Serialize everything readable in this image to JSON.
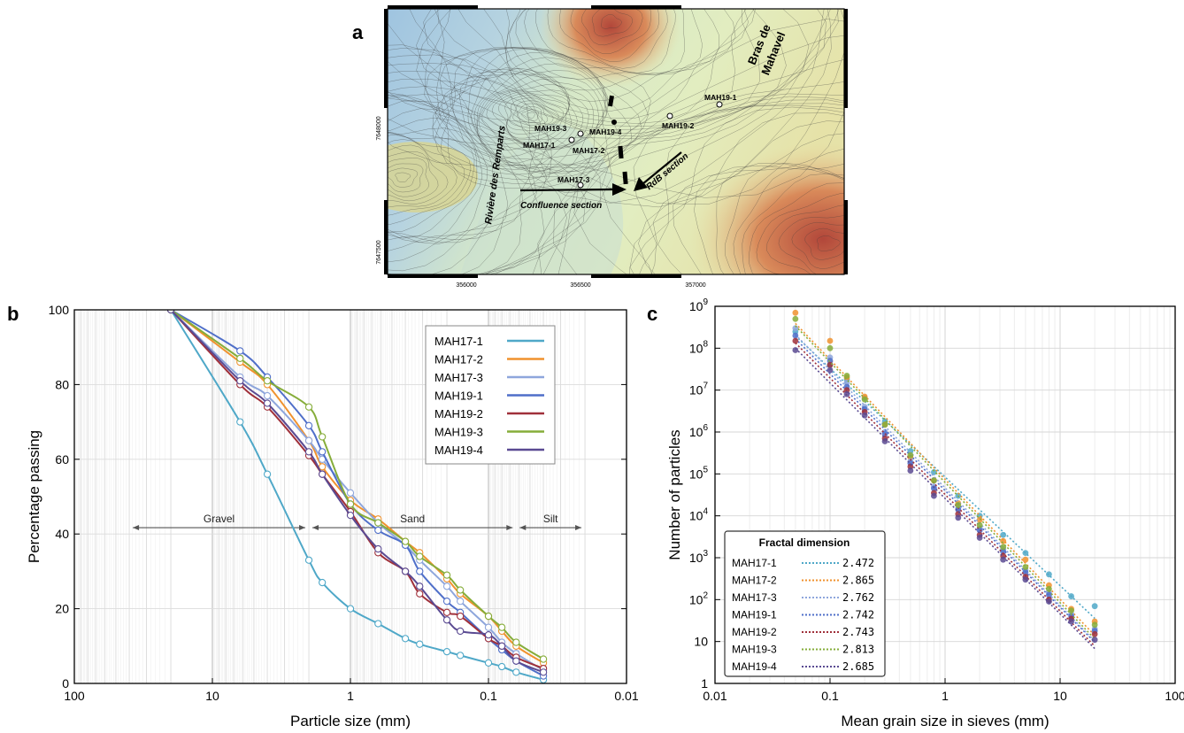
{
  "colors": {
    "map_water": "#9fc4e0",
    "map_low": "#d4e7c5",
    "map_mid": "#e7e0a6",
    "map_high": "#d98a5a",
    "map_peak": "#b2473a",
    "MAH17-1": "#4fa8c8",
    "MAH17-2": "#f0922e",
    "MAH17-3": "#8ea6dc",
    "MAH19-1": "#4f6fc9",
    "MAH19-2": "#a0303a",
    "MAH19-3": "#86ad3a",
    "MAH19-4": "#5a4a92"
  },
  "panels": {
    "a": "a",
    "b": "b",
    "c": "c"
  },
  "map": {
    "x_ticks": [
      "356000",
      "356500",
      "357000"
    ],
    "y_ticks": [
      "7648000",
      "7647500"
    ],
    "labels": [
      {
        "id": "mah19-1",
        "text": "MAH19-1"
      },
      {
        "id": "mah19-2",
        "text": "MAH19-2"
      },
      {
        "id": "mah19-3",
        "text": "MAH19-3"
      },
      {
        "id": "mah19-4",
        "text": "MAH19-4"
      },
      {
        "id": "mah17-1",
        "text": "MAH17-1"
      },
      {
        "id": "mah17-2",
        "text": "MAH17-2"
      },
      {
        "id": "mah17-3",
        "text": "MAH17-3"
      }
    ],
    "river_rem": "Rivière des Remparts",
    "bras_line1": "Bras de",
    "bras_line2": "Mahavel",
    "confluence": "Confluence section",
    "rdb": "RdB section"
  },
  "chart_data": [
    {
      "panel": "b",
      "type": "line",
      "xscale": "log",
      "xlim": [
        100,
        0.01
      ],
      "ylim": [
        0,
        100
      ],
      "xlabel": "Particle size (mm)",
      "ylabel": "Percentage passing",
      "x_ticks": [
        100,
        10,
        1,
        0.1,
        0.01
      ],
      "x_tick_labels": [
        "100",
        "10",
        "1",
        "0.1",
        "0.01"
      ],
      "y_ticks": [
        0,
        20,
        40,
        60,
        80,
        100
      ],
      "y_tick_labels": [
        "0",
        "20",
        "40",
        "60",
        "80",
        "100"
      ],
      "grid": true,
      "legend": "top-right",
      "x": [
        20,
        6.3,
        4,
        2,
        1.6,
        1,
        0.63,
        0.4,
        0.315,
        0.2,
        0.16,
        0.1,
        0.08,
        0.063,
        0.04
      ],
      "series": [
        {
          "name": "MAH17-1",
          "values": [
            100,
            70,
            56,
            33,
            27,
            20,
            16,
            12,
            10.5,
            8.5,
            7.5,
            5.5,
            4.5,
            3,
            1
          ]
        },
        {
          "name": "MAH17-2",
          "values": [
            100,
            86,
            80,
            65,
            58,
            49,
            44,
            38,
            35,
            28,
            24,
            18,
            14,
            10,
            5.5
          ]
        },
        {
          "name": "MAH17-3",
          "values": [
            100,
            82,
            77,
            65,
            60,
            51,
            43,
            37,
            33,
            26,
            22,
            15,
            11,
            8,
            3.5
          ]
        },
        {
          "name": "MAH19-1",
          "values": [
            100,
            89,
            82,
            69,
            62,
            48,
            41,
            37,
            30,
            22,
            19,
            12,
            9,
            6,
            2
          ]
        },
        {
          "name": "MAH19-2",
          "values": [
            100,
            80,
            74,
            61,
            56,
            46,
            35,
            30,
            24,
            19,
            18,
            12,
            10,
            7,
            4
          ]
        },
        {
          "name": "MAH19-3",
          "values": [
            100,
            87,
            81,
            74,
            66,
            48,
            43,
            38,
            34,
            29,
            25,
            18,
            15,
            11,
            6.5
          ]
        },
        {
          "name": "MAH19-4",
          "values": [
            100,
            81,
            75,
            62,
            56,
            45,
            36,
            30,
            26,
            17,
            14,
            13,
            10,
            6,
            3
          ]
        }
      ],
      "regions": [
        {
          "name": "Gravel",
          "from": 40,
          "to": 2
        },
        {
          "name": "Sand",
          "from": 2,
          "to": 0.063
        },
        {
          "name": "Silt",
          "from": 0.063,
          "to": 0.02
        }
      ]
    },
    {
      "panel": "c",
      "type": "scatter",
      "xscale": "log",
      "yscale": "log",
      "xlim": [
        0.01,
        100
      ],
      "ylim": [
        1,
        1000000000
      ],
      "xlabel": "Mean grain size in sieves (mm)",
      "ylabel": "Number of particles",
      "x_ticks": [
        0.01,
        0.1,
        1,
        10,
        100
      ],
      "x_tick_labels": [
        "0.01",
        "0.1",
        "1",
        "10",
        "100"
      ],
      "y_ticks": [
        1,
        10,
        100,
        1000,
        10000,
        100000,
        1000000,
        10000000,
        100000000,
        1000000000
      ],
      "y_tick_labels": [
        {
          "base": "1",
          "exp": ""
        },
        {
          "base": "10",
          "exp": ""
        },
        {
          "base": "10",
          "exp": "2"
        },
        {
          "base": "10",
          "exp": "3"
        },
        {
          "base": "10",
          "exp": "4"
        },
        {
          "base": "10",
          "exp": "5"
        },
        {
          "base": "10",
          "exp": "6"
        },
        {
          "base": "10",
          "exp": "7"
        },
        {
          "base": "10",
          "exp": "8"
        },
        {
          "base": "10",
          "exp": "9"
        }
      ],
      "grid": true,
      "legend": "bottom-left",
      "legend_title": "Fractal dimension",
      "x": [
        0.05,
        0.1,
        0.14,
        0.2,
        0.3,
        0.5,
        0.8,
        1.3,
        2,
        3.2,
        5,
        8,
        12.5,
        20
      ],
      "series": [
        {
          "name": "MAH17-1",
          "fractal_dimension": "2.472",
          "values": [
            250000000,
            40000000,
            18000000,
            6500000,
            1800000,
            350000,
            110000,
            30000,
            10000,
            3500,
            1300,
            400,
            120,
            70
          ]
        },
        {
          "name": "MAH17-2",
          "fractal_dimension": "2.865",
          "values": [
            700000000,
            150000000,
            20000000,
            7000000,
            1500000,
            250000,
            70000,
            20000,
            8000,
            2500,
            900,
            220,
            60,
            30
          ]
        },
        {
          "name": "MAH17-3",
          "fractal_dimension": "2.762",
          "values": [
            300000000,
            60000000,
            15000000,
            4000000,
            1000000,
            200000,
            50000,
            15000,
            5000,
            1600,
            500,
            150,
            45,
            20
          ]
        },
        {
          "name": "MAH19-1",
          "fractal_dimension": "2.742",
          "values": [
            200000000,
            50000000,
            12000000,
            3500000,
            900000,
            180000,
            45000,
            14000,
            4500,
            1400,
            450,
            130,
            40,
            18
          ]
        },
        {
          "name": "MAH19-2",
          "fractal_dimension": "2.743",
          "values": [
            150000000,
            40000000,
            10000000,
            3000000,
            700000,
            150000,
            35000,
            11000,
            3500,
            1100,
            350,
            100,
            35,
            15
          ]
        },
        {
          "name": "MAH19-3",
          "fractal_dimension": "2.813",
          "values": [
            500000000,
            100000000,
            22000000,
            6000000,
            1500000,
            280000,
            70000,
            18000,
            6000,
            1800,
            600,
            180,
            55,
            25
          ]
        },
        {
          "name": "MAH19-4",
          "fractal_dimension": "2.685",
          "values": [
            90000000,
            30000000,
            8000000,
            2500000,
            600000,
            120000,
            30000,
            9000,
            3000,
            900,
            300,
            90,
            30,
            11
          ]
        }
      ]
    }
  ]
}
